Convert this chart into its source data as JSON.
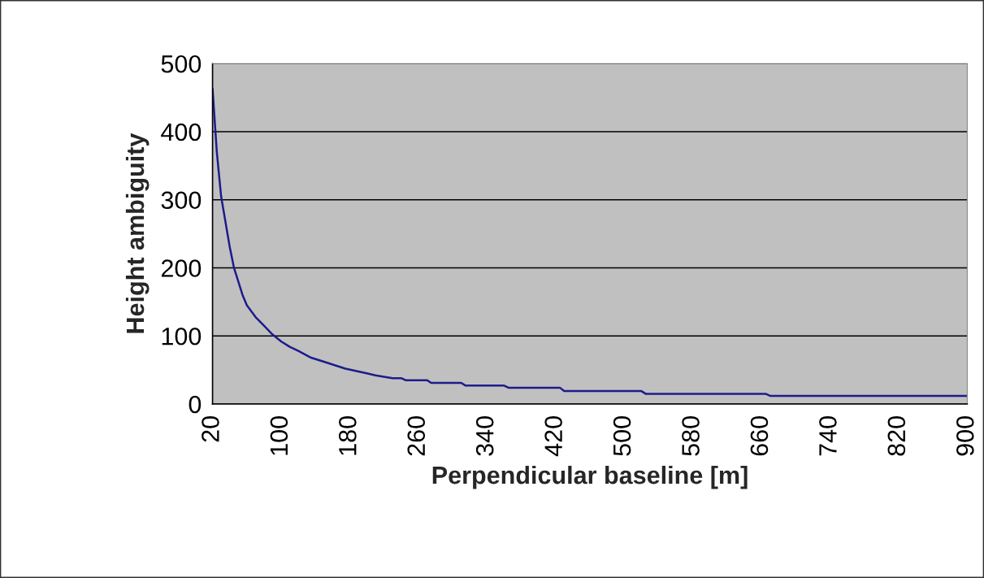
{
  "chart_data": {
    "type": "line",
    "xlabel": "Perpendicular baseline [m]",
    "ylabel": "Height ambiguity",
    "series": [
      {
        "color": "#1c1c8c",
        "x": [
          20,
          25,
          30,
          40,
          45,
          50,
          55,
          60,
          70,
          80,
          90,
          100,
          110,
          120,
          135,
          150,
          175,
          200,
          210,
          230,
          240,
          245,
          270,
          275,
          310,
          315,
          360,
          365,
          425,
          430,
          520,
          525,
          665,
          670,
          900
        ],
        "values": [
          463,
          370,
          305,
          231,
          200,
          180,
          160,
          145,
          128,
          115,
          102,
          92,
          84,
          78,
          68,
          62,
          52,
          45,
          42,
          38,
          38,
          35,
          35,
          31,
          31,
          27,
          27,
          24,
          24,
          19,
          19,
          15,
          15,
          12,
          12
        ]
      }
    ],
    "xlim": [
      20,
      900
    ],
    "xticks": [
      20,
      100,
      180,
      260,
      340,
      420,
      500,
      580,
      660,
      740,
      820,
      900
    ],
    "ylim": [
      0,
      500
    ],
    "yticks": [
      0,
      100,
      200,
      300,
      400,
      500
    ],
    "grid": "y",
    "marker": "none",
    "line_style": "solid"
  }
}
